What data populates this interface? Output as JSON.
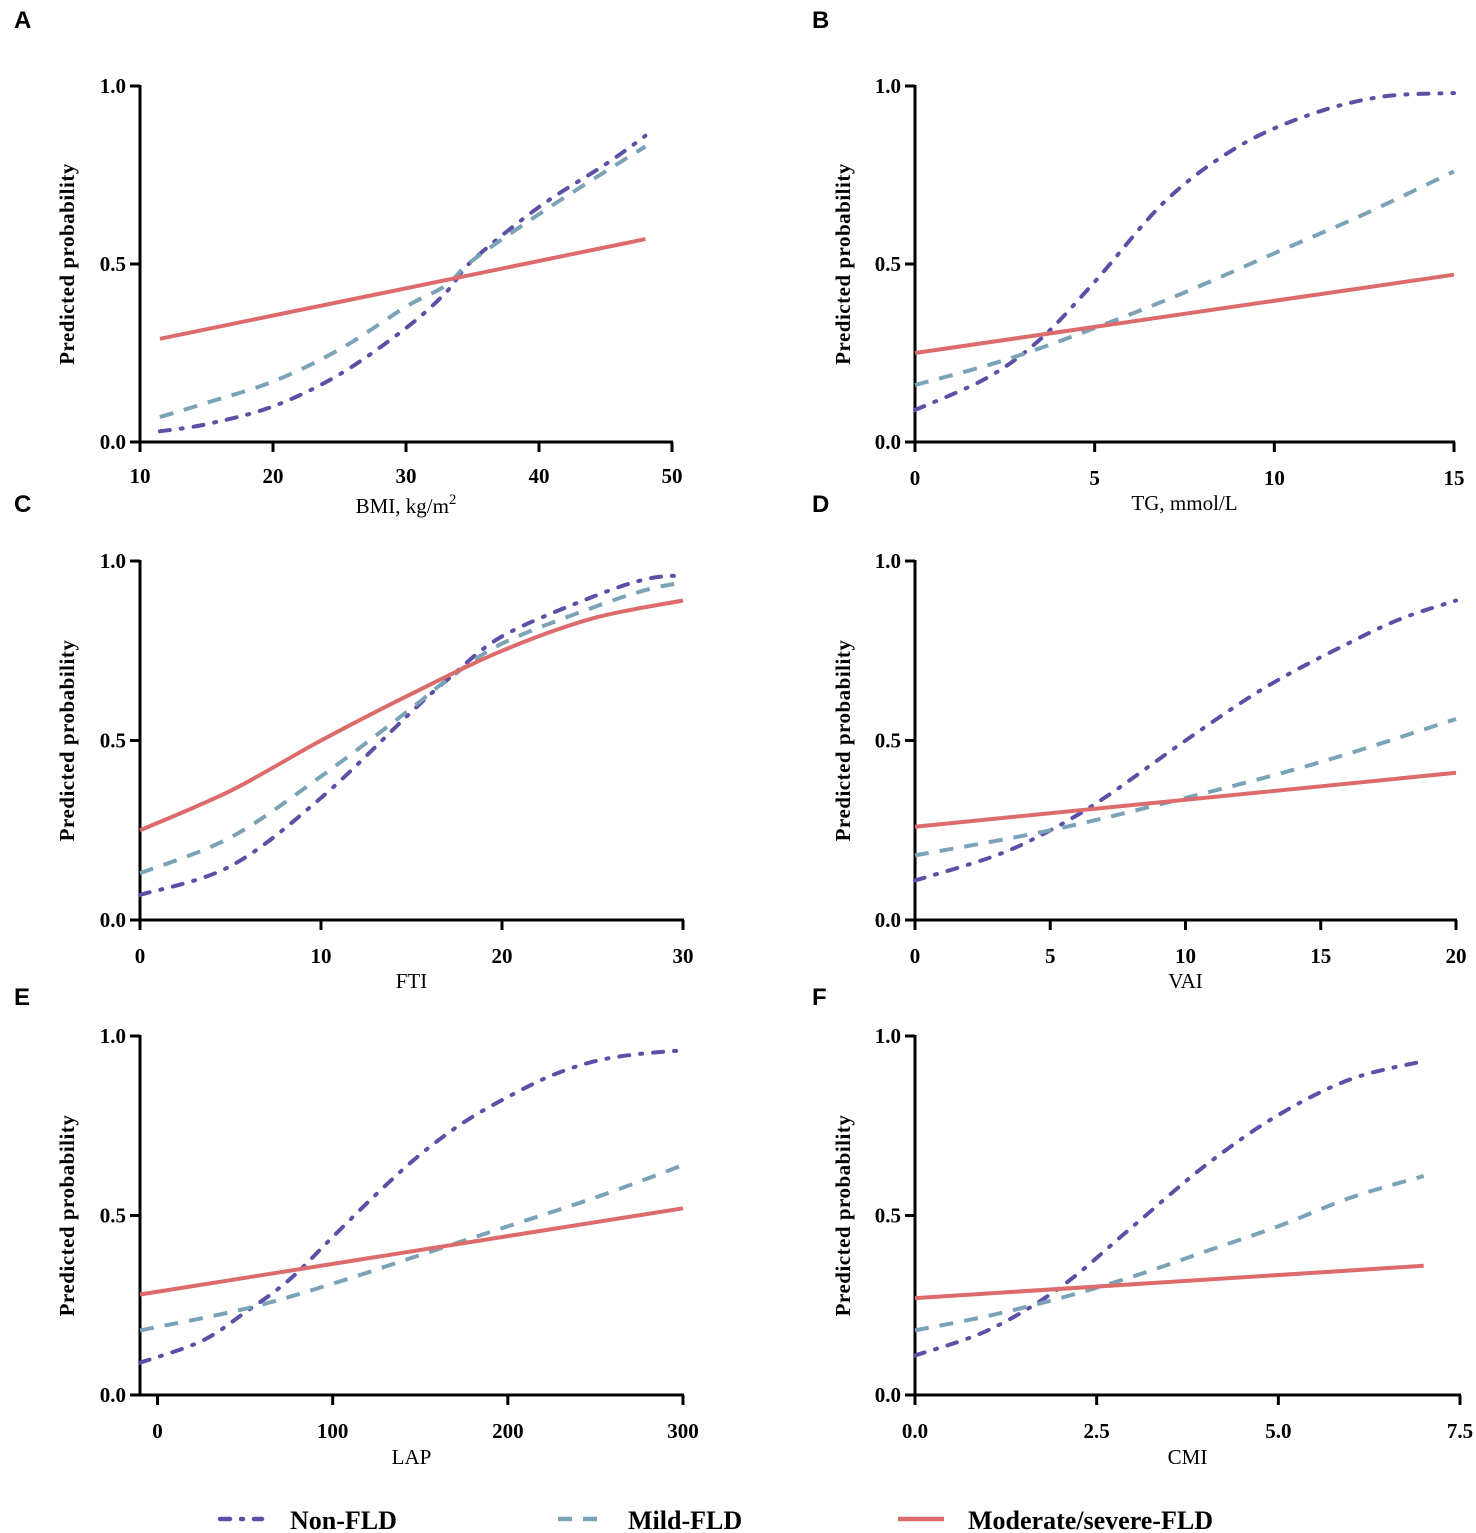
{
  "legend": [
    {
      "key": "non",
      "label": "Non-FLD",
      "color": "#5b4fa6",
      "dash": "10 11 2 11"
    },
    {
      "key": "mild",
      "label": "Mild-FLD",
      "color": "#7aa3b8",
      "dash": "14 11"
    },
    {
      "key": "mod",
      "label": "Moderate/severe-FLD",
      "color": "#de6b6b",
      "dash": ""
    }
  ],
  "chart_data": [
    {
      "panel": "A",
      "type": "line",
      "xlabel": "BMI, kg/m",
      "xlabel_sup": "2",
      "ylabel": "Predicted probability",
      "xlim": [
        10,
        50
      ],
      "ylim": [
        0,
        1
      ],
      "xticks": [
        10,
        20,
        30,
        40,
        50
      ],
      "xtick_labels": [
        "10",
        "20",
        "30",
        "40",
        "50"
      ],
      "yticks": [
        0,
        0.5,
        1
      ],
      "ytick_labels": [
        "0.0",
        "0.5",
        "1.0"
      ],
      "series": [
        {
          "name": "Non-FLD",
          "x": [
            11.5,
            15,
            20,
            25,
            30,
            33,
            35,
            40,
            45,
            48
          ],
          "y": [
            0.03,
            0.05,
            0.1,
            0.19,
            0.32,
            0.42,
            0.51,
            0.66,
            0.78,
            0.86
          ]
        },
        {
          "name": "Mild-FLD",
          "x": [
            11.5,
            15,
            20,
            25,
            30,
            33,
            35,
            40,
            45,
            48
          ],
          "y": [
            0.07,
            0.11,
            0.17,
            0.26,
            0.38,
            0.44,
            0.51,
            0.64,
            0.76,
            0.83
          ]
        },
        {
          "name": "Moderate/severe-FLD",
          "x": [
            11.5,
            48
          ],
          "y": [
            0.29,
            0.57
          ]
        }
      ]
    },
    {
      "panel": "B",
      "type": "line",
      "xlabel": "TG, mmol/L",
      "xlabel_sup": "",
      "ylabel": "Predicted probability",
      "xlim": [
        0,
        15
      ],
      "ylim": [
        0,
        1
      ],
      "xticks": [
        0,
        5,
        10,
        15
      ],
      "xtick_labels": [
        "0",
        "5",
        "10",
        "15"
      ],
      "yticks": [
        0,
        0.5,
        1
      ],
      "ytick_labels": [
        "0.0",
        "0.5",
        "1.0"
      ],
      "series": [
        {
          "name": "Non-FLD",
          "x": [
            0,
            2,
            3.5,
            5,
            7,
            9,
            11,
            13,
            15
          ],
          "y": [
            0.09,
            0.18,
            0.29,
            0.45,
            0.68,
            0.83,
            0.92,
            0.97,
            0.98
          ]
        },
        {
          "name": "Mild-FLD",
          "x": [
            0,
            2.5,
            5,
            7.5,
            10,
            12.5,
            15
          ],
          "y": [
            0.16,
            0.23,
            0.32,
            0.42,
            0.53,
            0.64,
            0.76
          ]
        },
        {
          "name": "Moderate/severe-FLD",
          "x": [
            0,
            15
          ],
          "y": [
            0.25,
            0.47
          ]
        }
      ]
    },
    {
      "panel": "C",
      "type": "line",
      "xlabel": "FTI",
      "xlabel_sup": "",
      "ylabel": "Predicted probability",
      "xlim": [
        0,
        30
      ],
      "ylim": [
        0,
        1
      ],
      "xticks": [
        0,
        10,
        20,
        30
      ],
      "xtick_labels": [
        "0",
        "10",
        "20",
        "30"
      ],
      "yticks": [
        0,
        0.5,
        1
      ],
      "ytick_labels": [
        "0.0",
        "0.5",
        "1.0"
      ],
      "series": [
        {
          "name": "Non-FLD",
          "x": [
            0,
            5,
            10,
            15,
            17,
            20,
            25,
            28,
            30
          ],
          "y": [
            0.07,
            0.15,
            0.34,
            0.58,
            0.67,
            0.79,
            0.9,
            0.95,
            0.96
          ]
        },
        {
          "name": "Mild-FLD",
          "x": [
            0,
            5,
            10,
            15,
            17,
            20,
            25,
            28,
            30
          ],
          "y": [
            0.13,
            0.23,
            0.4,
            0.59,
            0.67,
            0.77,
            0.87,
            0.92,
            0.94
          ]
        },
        {
          "name": "Moderate/severe-FLD",
          "x": [
            0,
            5,
            10,
            15,
            20,
            25,
            30
          ],
          "y": [
            0.25,
            0.36,
            0.5,
            0.63,
            0.75,
            0.84,
            0.89
          ]
        }
      ]
    },
    {
      "panel": "D",
      "type": "line",
      "xlabel": "VAI",
      "xlabel_sup": "",
      "ylabel": "Predicted probability",
      "xlim": [
        0,
        20
      ],
      "ylim": [
        0,
        1
      ],
      "xticks": [
        0,
        5,
        10,
        15,
        20
      ],
      "xtick_labels": [
        "0",
        "5",
        "10",
        "15",
        "20"
      ],
      "yticks": [
        0,
        0.5,
        1
      ],
      "ytick_labels": [
        "0.0",
        "0.5",
        "1.0"
      ],
      "series": [
        {
          "name": "Non-FLD",
          "x": [
            0,
            3,
            5,
            7,
            10,
            13,
            16,
            18,
            20
          ],
          "y": [
            0.11,
            0.18,
            0.25,
            0.34,
            0.5,
            0.65,
            0.77,
            0.84,
            0.89
          ]
        },
        {
          "name": "Mild-FLD",
          "x": [
            0,
            5,
            10,
            15,
            20
          ],
          "y": [
            0.18,
            0.25,
            0.34,
            0.44,
            0.56
          ]
        },
        {
          "name": "Moderate/severe-FLD",
          "x": [
            0,
            20
          ],
          "y": [
            0.26,
            0.41
          ]
        }
      ]
    },
    {
      "panel": "E",
      "type": "line",
      "xlabel": "LAP",
      "xlabel_sup": "",
      "ylabel": "Predicted probability",
      "xlim": [
        -10,
        300
      ],
      "ylim": [
        0,
        1
      ],
      "xticks": [
        0,
        100,
        200,
        300
      ],
      "xtick_labels": [
        "0",
        "100",
        "200",
        "300"
      ],
      "yticks": [
        0,
        0.5,
        1
      ],
      "ytick_labels": [
        "0.0",
        "0.5",
        "1.0"
      ],
      "series": [
        {
          "name": "Non-FLD",
          "x": [
            -10,
            25,
            50,
            75,
            100,
            125,
            150,
            175,
            200,
            225,
            250,
            275,
            300
          ],
          "y": [
            0.09,
            0.15,
            0.23,
            0.32,
            0.44,
            0.56,
            0.67,
            0.76,
            0.83,
            0.89,
            0.93,
            0.95,
            0.96
          ]
        },
        {
          "name": "Mild-FLD",
          "x": [
            -10,
            50,
            100,
            150,
            200,
            250,
            300
          ],
          "y": [
            0.18,
            0.24,
            0.31,
            0.39,
            0.47,
            0.55,
            0.64
          ]
        },
        {
          "name": "Moderate/severe-FLD",
          "x": [
            -10,
            300
          ],
          "y": [
            0.28,
            0.52
          ]
        }
      ]
    },
    {
      "panel": "F",
      "type": "line",
      "xlabel": "CMI",
      "xlabel_sup": "",
      "ylabel": "Predicted probability",
      "xlim": [
        0,
        7.5
      ],
      "ylim": [
        0,
        1
      ],
      "xticks": [
        0,
        2.5,
        5,
        7.5
      ],
      "xtick_labels": [
        "0.0",
        "2.5",
        "5.0",
        "7.5"
      ],
      "yticks": [
        0,
        0.5,
        1
      ],
      "ytick_labels": [
        "0.0",
        "0.5",
        "1.0"
      ],
      "series": [
        {
          "name": "Non-FLD",
          "x": [
            0,
            1,
            2,
            3,
            4,
            5,
            6,
            7
          ],
          "y": [
            0.11,
            0.18,
            0.3,
            0.47,
            0.64,
            0.78,
            0.88,
            0.93
          ]
        },
        {
          "name": "Mild-FLD",
          "x": [
            0,
            1,
            2,
            3,
            4,
            5,
            6,
            7
          ],
          "y": [
            0.18,
            0.22,
            0.27,
            0.33,
            0.4,
            0.47,
            0.55,
            0.61
          ]
        },
        {
          "name": "Moderate/severe-FLD",
          "x": [
            0,
            7
          ],
          "y": [
            0.27,
            0.36
          ]
        }
      ]
    }
  ]
}
